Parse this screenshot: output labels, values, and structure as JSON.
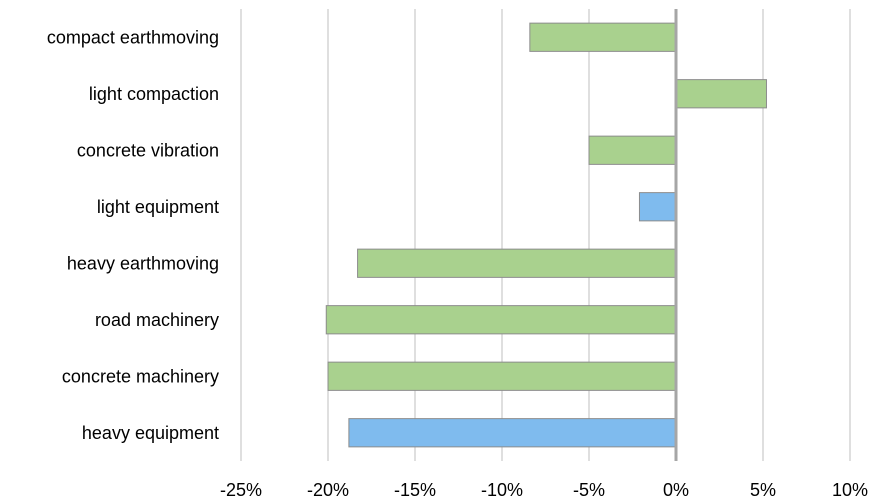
{
  "chart_data": {
    "type": "bar",
    "orientation": "horizontal",
    "categories": [
      "compact earthmoving",
      "light compaction",
      "concrete vibration",
      "light equipment",
      "heavy earthmoving",
      "road machinery",
      "concrete machinery",
      "heavy equipment"
    ],
    "values": [
      -8.4,
      5.2,
      -5.0,
      -2.1,
      -18.3,
      -20.1,
      -20.0,
      -18.8
    ],
    "bar_colors": [
      "#a9d18e",
      "#a9d18e",
      "#a9d18e",
      "#7fbbee",
      "#a9d18e",
      "#a9d18e",
      "#a9d18e",
      "#7fbbee"
    ],
    "xlim": [
      -25,
      10
    ],
    "xticks": [
      -25,
      -20,
      -15,
      -10,
      -5,
      0,
      5,
      10
    ],
    "xtick_labels": [
      "-25%",
      "-20%",
      "-15%",
      "-10%",
      "-5%",
      "0%",
      "5%",
      "10%"
    ],
    "grid": "vertical",
    "legend": "none",
    "title": "",
    "xlabel": "",
    "ylabel": ""
  }
}
